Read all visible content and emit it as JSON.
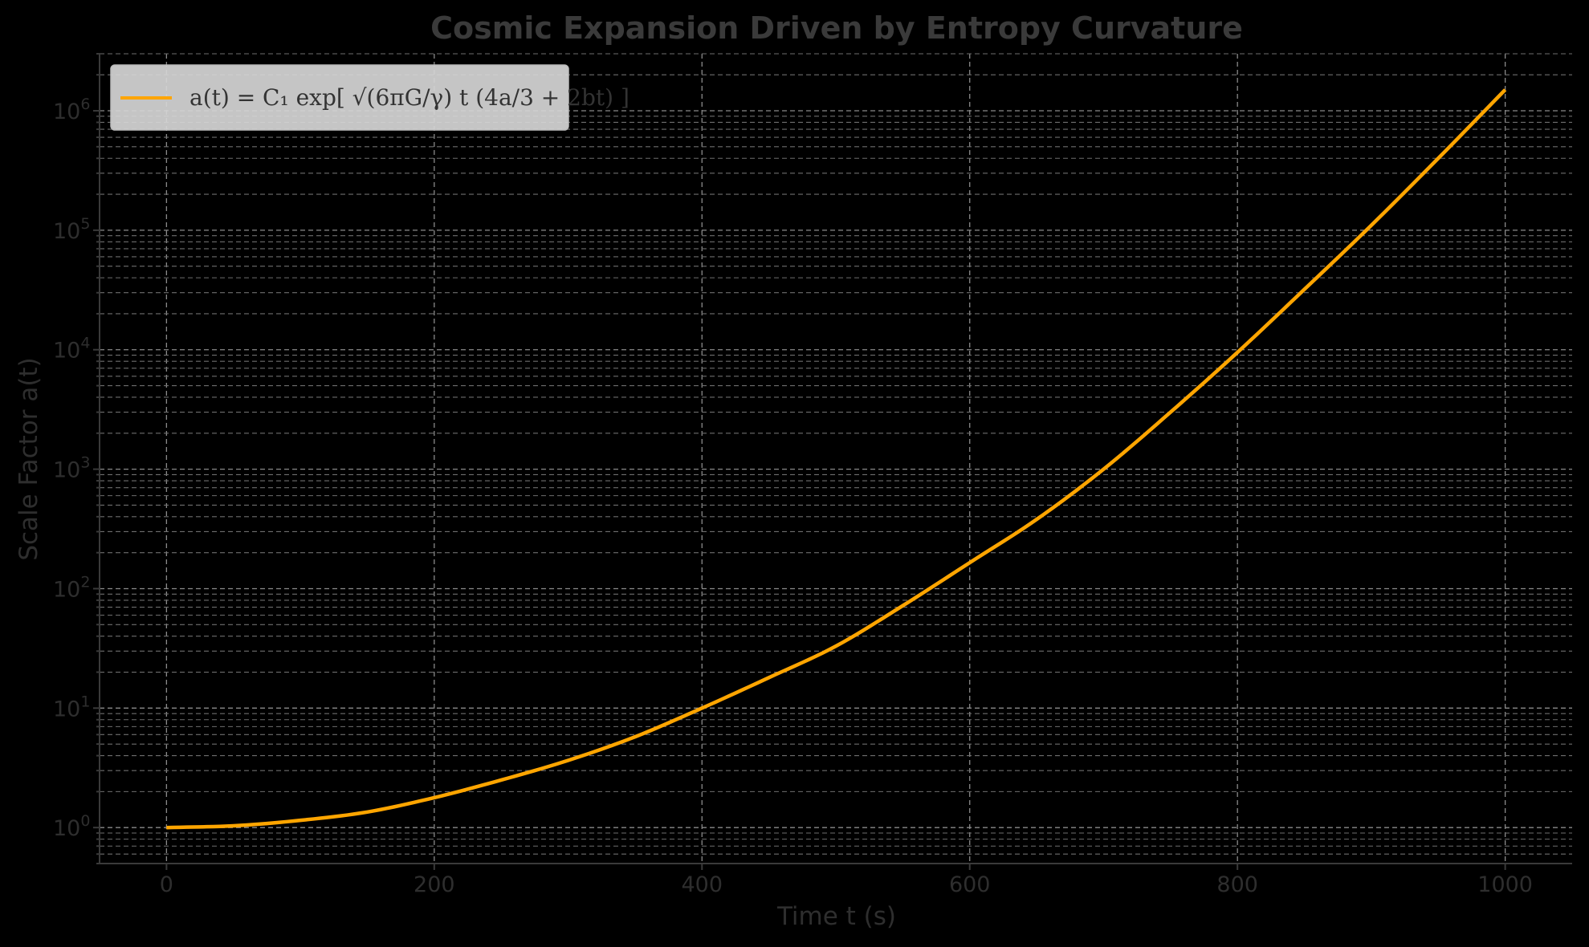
{
  "chart_data": {
    "type": "line",
    "title": "Cosmic Expansion Driven by Entropy Curvature",
    "xlabel": "Time t (s)",
    "ylabel": "Scale Factor a(t)",
    "xlim": [
      -50,
      1050
    ],
    "ylim": [
      0.5,
      3000000
    ],
    "yscale": "log",
    "grid": true,
    "legend_position": "top-left",
    "x_ticks": [
      0,
      200,
      400,
      600,
      800,
      1000
    ],
    "y_ticks": [
      {
        "value": 1,
        "base": "10",
        "exp": "0"
      },
      {
        "value": 10,
        "base": "10",
        "exp": "1"
      },
      {
        "value": 100,
        "base": "10",
        "exp": "2"
      },
      {
        "value": 1000,
        "base": "10",
        "exp": "3"
      },
      {
        "value": 10000,
        "base": "10",
        "exp": "4"
      },
      {
        "value": 100000,
        "base": "10",
        "exp": "5"
      },
      {
        "value": 1000000,
        "base": "10",
        "exp": "6"
      }
    ],
    "series": [
      {
        "name": "a(t) = C₁ exp[ √(6πG/γ) t (4a/3 + 2bt) ]",
        "color": "#ffa500",
        "x": [
          0,
          50,
          100,
          150,
          200,
          250,
          300,
          350,
          400,
          450,
          500,
          550,
          600,
          650,
          700,
          750,
          800,
          850,
          900,
          950,
          1000
        ],
        "y": [
          1.0,
          1.035,
          1.15,
          1.35,
          1.78,
          2.5,
          3.65,
          5.75,
          10.0,
          18.0,
          33.0,
          72.0,
          165.0,
          380.0,
          1000.0,
          3000.0,
          9500.0,
          32000.0,
          110000.0,
          400000.0,
          1500000.0
        ]
      }
    ]
  }
}
